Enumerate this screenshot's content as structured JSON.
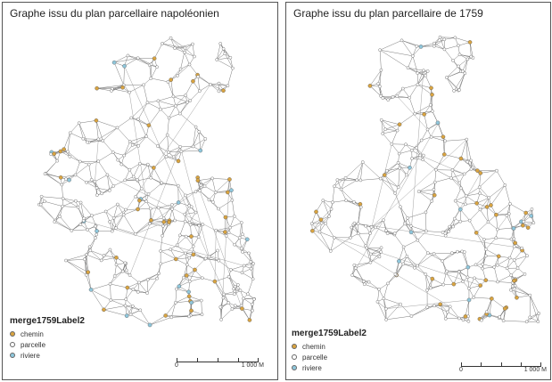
{
  "maps": [
    {
      "title": "Graphe issu du plan parcellaire napoléonien",
      "legend": {
        "title": "merge1759Label2",
        "items": [
          {
            "label": "chemin",
            "color": "#d9a441"
          },
          {
            "label": "parcelle",
            "color": "#ffffff"
          },
          {
            "label": "riviere",
            "color": "#8fc7dc"
          }
        ]
      },
      "scale": {
        "start": "0",
        "end": "1 000 M"
      }
    },
    {
      "title": "Graphe issu du plan parcellaire de 1759",
      "legend": {
        "title": "merge1759Label2",
        "items": [
          {
            "label": "chemin",
            "color": "#d9a441"
          },
          {
            "label": "parcelle",
            "color": "#ffffff"
          },
          {
            "label": "riviere",
            "color": "#8fc7dc"
          }
        ]
      },
      "scale": {
        "start": "0",
        "end": "1 000 M"
      }
    }
  ]
}
